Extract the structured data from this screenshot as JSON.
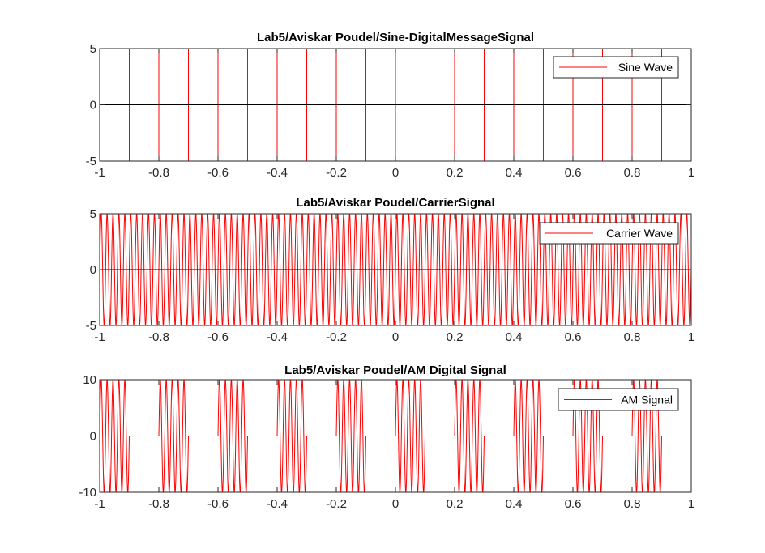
{
  "chart_data": [
    {
      "type": "line",
      "title": "Lab5/Aviskar Poudel/Sine-DigitalMessageSignal",
      "xlabel": "",
      "ylabel": "",
      "xlim": [
        -1,
        1
      ],
      "ylim": [
        -5,
        5
      ],
      "xticks": [
        "-1",
        "-0.8",
        "-0.6",
        "-0.4",
        "-0.2",
        "0",
        "0.2",
        "0.4",
        "0.6",
        "0.8",
        "1"
      ],
      "yticks": [
        "-5",
        "0",
        "5"
      ],
      "grid": false,
      "legend_position": "top-right",
      "series": [
        {
          "name": "Sine Wave",
          "color": "#ff0000",
          "kind": "square",
          "frequency": 5,
          "amplitude": 5,
          "starts": "high"
        }
      ],
      "reference_line": {
        "y": 0,
        "color": "#000000"
      }
    },
    {
      "type": "line",
      "title": "Lab5/Aviskar Poudel/CarrierSignal",
      "xlabel": "",
      "ylabel": "",
      "xlim": [
        -1,
        1
      ],
      "ylim": [
        -5,
        5
      ],
      "xticks": [
        "-1",
        "-0.8",
        "-0.6",
        "-0.4",
        "-0.2",
        "0",
        "0.2",
        "0.4",
        "0.6",
        "0.8",
        "1"
      ],
      "yticks": [
        "-5",
        "0",
        "5"
      ],
      "grid": false,
      "legend_position": "top-right",
      "series": [
        {
          "name": "Carrier Wave",
          "color": "#ff0000",
          "kind": "sine",
          "frequency": 50,
          "amplitude": 5
        }
      ],
      "reference_line": {
        "y": 0,
        "color": "#000000"
      }
    },
    {
      "type": "line",
      "title": "Lab5/Aviskar Poudel/AM Digital Signal",
      "xlabel": "",
      "ylabel": "",
      "xlim": [
        -1,
        1
      ],
      "ylim": [
        -10,
        10
      ],
      "xticks": [
        "-1",
        "-0.8",
        "-0.6",
        "-0.4",
        "-0.2",
        "0",
        "0.2",
        "0.4",
        "0.6",
        "0.8",
        "1"
      ],
      "yticks": [
        "-10",
        "0",
        "10"
      ],
      "grid": false,
      "legend_position": "top-right",
      "series": [
        {
          "name": "AM Signal",
          "color": "#ff0000",
          "kind": "am",
          "message_frequency": 5,
          "carrier_frequency": 50,
          "amplitude": 10
        }
      ],
      "reference_line": {
        "y": 0,
        "color": "#000000"
      }
    }
  ]
}
